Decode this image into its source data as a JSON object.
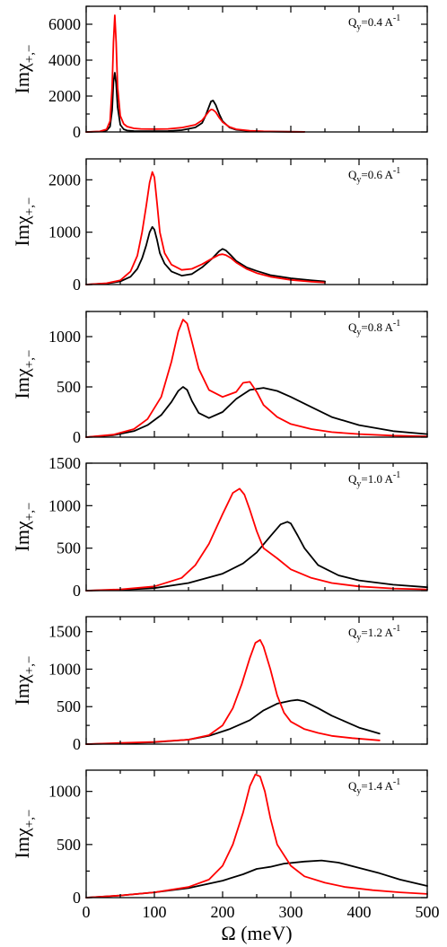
{
  "chart_data": [
    {
      "type": "line",
      "ylabel": "Imχ+,−",
      "annotation": "Qy=0.4 A-1",
      "xlim": [
        0,
        500
      ],
      "ylim": [
        0,
        7000
      ],
      "yticks": [
        0,
        2000,
        4000,
        6000
      ],
      "series": [
        {
          "color": "#000000",
          "x": [
            0,
            20,
            30,
            35,
            38,
            40,
            42,
            44,
            46,
            50,
            55,
            60,
            70,
            80,
            100,
            120,
            140,
            160,
            170,
            175,
            180,
            183,
            186,
            190,
            195,
            200,
            210,
            220,
            240,
            260,
            280,
            300,
            320
          ],
          "y": [
            0,
            20,
            80,
            300,
            1200,
            2800,
            3300,
            2700,
            1400,
            400,
            150,
            80,
            50,
            40,
            40,
            50,
            100,
            250,
            500,
            900,
            1400,
            1700,
            1750,
            1500,
            1000,
            600,
            250,
            120,
            50,
            25,
            15,
            10,
            5
          ]
        },
        {
          "color": "#ff0000",
          "x": [
            0,
            20,
            30,
            35,
            38,
            40,
            42,
            44,
            46,
            50,
            55,
            60,
            70,
            80,
            100,
            120,
            140,
            160,
            170,
            175,
            180,
            183,
            186,
            190,
            195,
            200,
            210,
            220,
            240,
            260,
            280,
            300,
            320
          ],
          "y": [
            0,
            30,
            150,
            600,
            2500,
            5000,
            6500,
            5000,
            2500,
            900,
            450,
            300,
            200,
            170,
            160,
            170,
            240,
            400,
            650,
            900,
            1150,
            1250,
            1230,
            1100,
            800,
            550,
            280,
            150,
            70,
            35,
            20,
            12,
            6
          ]
        }
      ]
    },
    {
      "type": "line",
      "ylabel": "Imχ+,−",
      "annotation": "Qy=0.6 A-1",
      "xlim": [
        0,
        500
      ],
      "ylim": [
        0,
        2400
      ],
      "yticks": [
        0,
        1000,
        2000
      ],
      "series": [
        {
          "color": "#000000",
          "x": [
            0,
            30,
            50,
            65,
            75,
            82,
            88,
            93,
            97,
            100,
            104,
            108,
            115,
            125,
            140,
            155,
            170,
            185,
            195,
            200,
            205,
            212,
            220,
            235,
            250,
            270,
            300,
            330,
            350
          ],
          "y": [
            0,
            20,
            60,
            150,
            300,
            500,
            750,
            1000,
            1100,
            1050,
            850,
            600,
            400,
            250,
            170,
            200,
            330,
            500,
            640,
            680,
            650,
            560,
            450,
            330,
            260,
            180,
            120,
            80,
            60
          ]
        },
        {
          "color": "#ff0000",
          "x": [
            0,
            30,
            50,
            65,
            75,
            82,
            88,
            93,
            97,
            100,
            104,
            108,
            115,
            125,
            140,
            155,
            170,
            185,
            195,
            200,
            205,
            212,
            220,
            235,
            250,
            270,
            300,
            330,
            350
          ],
          "y": [
            0,
            25,
            80,
            250,
            550,
            1000,
            1500,
            1950,
            2150,
            2050,
            1550,
            1000,
            600,
            380,
            280,
            300,
            390,
            500,
            570,
            580,
            560,
            510,
            420,
            300,
            220,
            150,
            90,
            55,
            40
          ]
        }
      ]
    },
    {
      "type": "line",
      "ylabel": "Imχ+,−",
      "annotation": "Qy=0.8 A-1",
      "xlim": [
        0,
        500
      ],
      "ylim": [
        0,
        1250
      ],
      "yticks": [
        0,
        500,
        1000
      ],
      "series": [
        {
          "color": "#000000",
          "x": [
            0,
            40,
            70,
            90,
            110,
            125,
            135,
            142,
            148,
            155,
            165,
            180,
            200,
            220,
            240,
            260,
            280,
            300,
            330,
            360,
            400,
            450,
            500
          ],
          "y": [
            0,
            20,
            60,
            120,
            220,
            350,
            460,
            500,
            470,
            360,
            240,
            190,
            250,
            380,
            470,
            490,
            460,
            400,
            300,
            200,
            120,
            60,
            30
          ]
        },
        {
          "color": "#ff0000",
          "x": [
            0,
            40,
            70,
            90,
            110,
            125,
            135,
            142,
            148,
            155,
            165,
            180,
            200,
            220,
            230,
            240,
            250,
            260,
            280,
            300,
            330,
            360,
            400,
            450,
            500
          ],
          "y": [
            0,
            25,
            80,
            180,
            400,
            750,
            1050,
            1170,
            1130,
            950,
            680,
            470,
            400,
            450,
            540,
            550,
            450,
            320,
            200,
            130,
            80,
            50,
            30,
            15,
            8
          ]
        }
      ]
    },
    {
      "type": "line",
      "ylabel": "Imχ+,−",
      "annotation": "Qy=1.0 A-1",
      "xlim": [
        0,
        500
      ],
      "ylim": [
        0,
        1500
      ],
      "yticks": [
        0,
        500,
        1000,
        1500
      ],
      "series": [
        {
          "color": "#000000",
          "x": [
            0,
            50,
            100,
            150,
            200,
            230,
            250,
            270,
            285,
            295,
            300,
            310,
            320,
            340,
            370,
            400,
            450,
            500
          ],
          "y": [
            0,
            10,
            30,
            90,
            200,
            320,
            450,
            640,
            780,
            810,
            790,
            650,
            500,
            300,
            180,
            120,
            70,
            40
          ]
        },
        {
          "color": "#ff0000",
          "x": [
            0,
            50,
            100,
            140,
            160,
            180,
            200,
            215,
            225,
            232,
            240,
            250,
            260,
            280,
            300,
            330,
            360,
            400,
            450,
            500
          ],
          "y": [
            0,
            15,
            50,
            150,
            300,
            550,
            900,
            1150,
            1200,
            1130,
            950,
            700,
            500,
            380,
            250,
            150,
            90,
            50,
            25,
            15
          ]
        }
      ]
    },
    {
      "type": "line",
      "ylabel": "Imχ+,−",
      "annotation": "Qy=1.2 A-1",
      "xlim": [
        0,
        500
      ],
      "ylim": [
        0,
        1700
      ],
      "yticks": [
        0,
        500,
        1000,
        1500
      ],
      "series": [
        {
          "color": "#000000",
          "x": [
            0,
            50,
            100,
            150,
            180,
            210,
            240,
            260,
            280,
            300,
            310,
            320,
            340,
            360,
            380,
            400,
            430
          ],
          "y": [
            0,
            10,
            25,
            60,
            110,
            200,
            320,
            450,
            540,
            580,
            590,
            570,
            480,
            380,
            300,
            220,
            140
          ]
        },
        {
          "color": "#ff0000",
          "x": [
            0,
            50,
            100,
            150,
            180,
            200,
            215,
            228,
            240,
            248,
            255,
            260,
            270,
            280,
            290,
            300,
            320,
            340,
            360,
            390,
            430
          ],
          "y": [
            0,
            15,
            30,
            60,
            120,
            250,
            480,
            800,
            1150,
            1350,
            1390,
            1300,
            1000,
            650,
            420,
            300,
            200,
            150,
            110,
            80,
            50
          ]
        }
      ]
    },
    {
      "type": "line",
      "ylabel": "Imχ+,−",
      "annotation": "Qy=1.4 A-1",
      "xlim": [
        0,
        500
      ],
      "ylim": [
        0,
        1200
      ],
      "yticks": [
        0,
        500,
        1000
      ],
      "series": [
        {
          "color": "#000000",
          "x": [
            0,
            50,
            100,
            150,
            200,
            230,
            250,
            260,
            270,
            290,
            320,
            345,
            370,
            400,
            430,
            460,
            500
          ],
          "y": [
            0,
            20,
            50,
            90,
            160,
            220,
            270,
            280,
            290,
            320,
            340,
            350,
            330,
            280,
            230,
            170,
            110
          ]
        },
        {
          "color": "#ff0000",
          "x": [
            0,
            50,
            100,
            150,
            180,
            200,
            215,
            230,
            240,
            248,
            255,
            262,
            270,
            280,
            300,
            320,
            350,
            380,
            420,
            460,
            500
          ],
          "y": [
            0,
            20,
            50,
            100,
            170,
            300,
            500,
            800,
            1050,
            1160,
            1140,
            1000,
            750,
            500,
            300,
            200,
            140,
            100,
            70,
            50,
            35
          ]
        }
      ]
    }
  ],
  "x_axis": {
    "label": "Ω (meV)",
    "ticks": [
      0,
      100,
      200,
      300,
      400,
      500
    ]
  }
}
